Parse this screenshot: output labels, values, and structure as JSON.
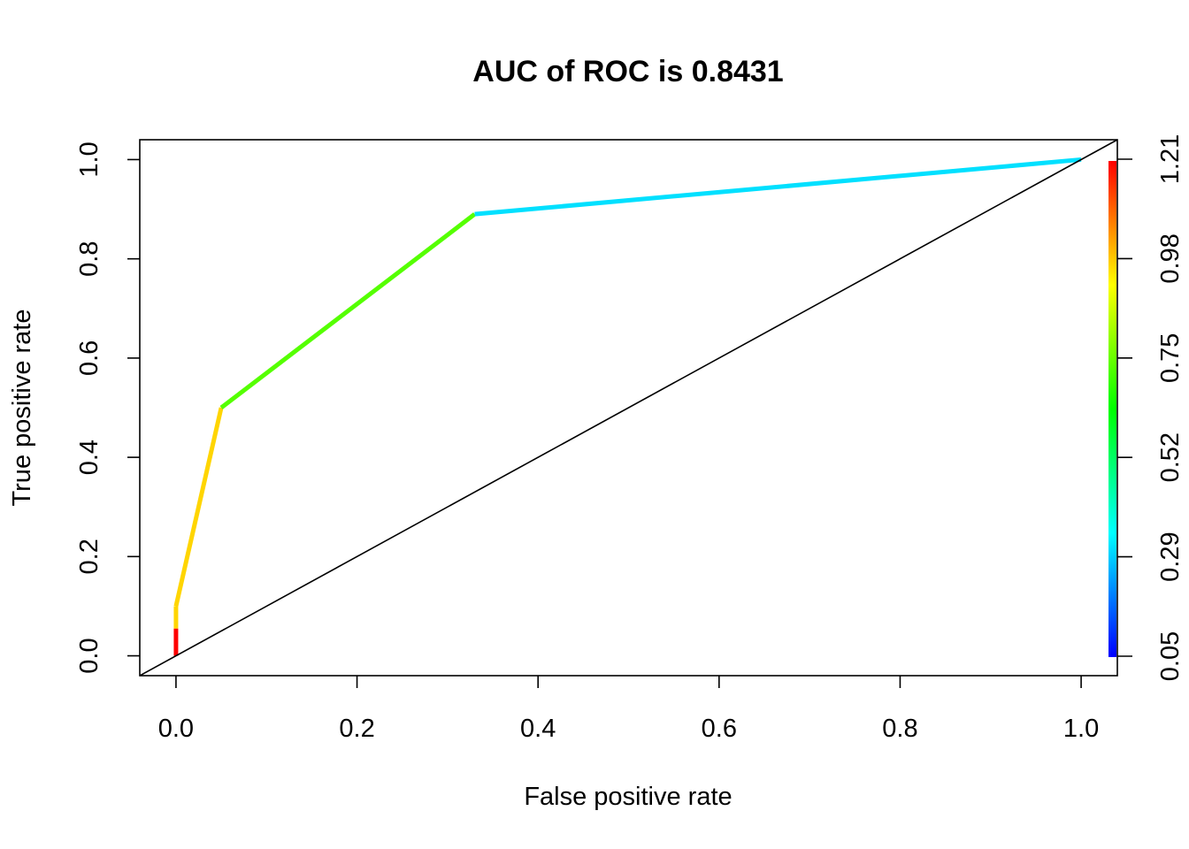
{
  "chart_data": {
    "type": "line",
    "title": "AUC of ROC is  0.8431",
    "xlabel": "False positive rate",
    "ylabel": "True positive rate",
    "xlim": [
      -0.04,
      1.04
    ],
    "ylim": [
      -0.04,
      1.04
    ],
    "x_ticks": [
      "0.0",
      "0.2",
      "0.4",
      "0.6",
      "0.8",
      "1.0"
    ],
    "y_ticks": [
      "0.0",
      "0.2",
      "0.4",
      "0.6",
      "0.8",
      "1.0"
    ],
    "grid": false,
    "diagonal_reference_line": true,
    "roc_curve": {
      "points": [
        {
          "x": 0.0,
          "y": 0.0,
          "cutoff": 1.21,
          "color": "#ff0000"
        },
        {
          "x": 0.0,
          "y": 0.055,
          "cutoff": 1.15,
          "color": "#ff0000"
        },
        {
          "x": 0.0,
          "y": 0.1,
          "cutoff": 0.98,
          "color": "#ffd500"
        },
        {
          "x": 0.05,
          "y": 0.5,
          "cutoff": 0.9,
          "color": "#ffd500"
        },
        {
          "x": 0.33,
          "y": 0.89,
          "cutoff": 0.7,
          "color": "#55ff00"
        },
        {
          "x": 1.0,
          "y": 1.0,
          "cutoff": 0.35,
          "color": "#00e0ff"
        }
      ]
    },
    "colorbar": {
      "label_values": [
        "0.05",
        "0.29",
        "0.52",
        "0.75",
        "0.98",
        "1.21"
      ],
      "colors": [
        "#0000ff",
        "#0080ff",
        "#00ffff",
        "#00ff80",
        "#00ff00",
        "#80ff00",
        "#ffff00",
        "#ff8000",
        "#ff0000"
      ]
    }
  }
}
